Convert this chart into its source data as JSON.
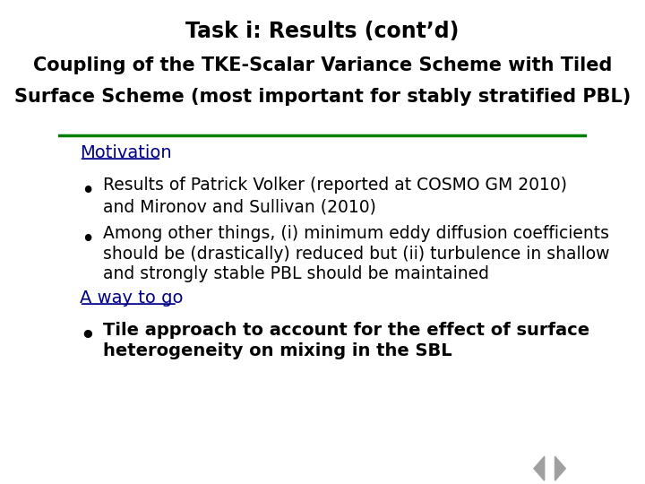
{
  "title_line1": "Task i: Results (cont’d)",
  "title_line2": "Coupling of the TKE-Scalar Variance Scheme with Tiled",
  "title_line3": "Surface Scheme (most important for stably stratified PBL)",
  "title_color": "#000000",
  "header_bg": "#ffffff",
  "header_border_color": "#008000",
  "body_bg": "#ffffff",
  "section1_label": "Motivation",
  "section1_color": "#00008B",
  "bullet1_line1": "Results of Patrick Volker (reported at COSMO GM 2010)",
  "bullet1_line2": "and Mironov and Sullivan (2010)",
  "bullet2_line1": "Among other things, (i) minimum eddy diffusion coefficients",
  "bullet2_line2": "should be (drastically) reduced but (ii) turbulence in shallow",
  "bullet2_line3": "and strongly stable PBL should be maintained",
  "section2_label": "A way to go",
  "section2_color": "#00008B",
  "bullet3_line1": "Tile approach to account for the effect of surface",
  "bullet3_line2": "heterogeneity on mixing in the SBL",
  "bullet_color": "#000000",
  "nav_arrow_color": "#a0a0a0",
  "font_family": "DejaVu Sans",
  "title_fontsize": 17,
  "subtitle_fontsize": 15,
  "section_fontsize": 14,
  "body_fontsize": 13.5,
  "bold_fontsize": 14
}
